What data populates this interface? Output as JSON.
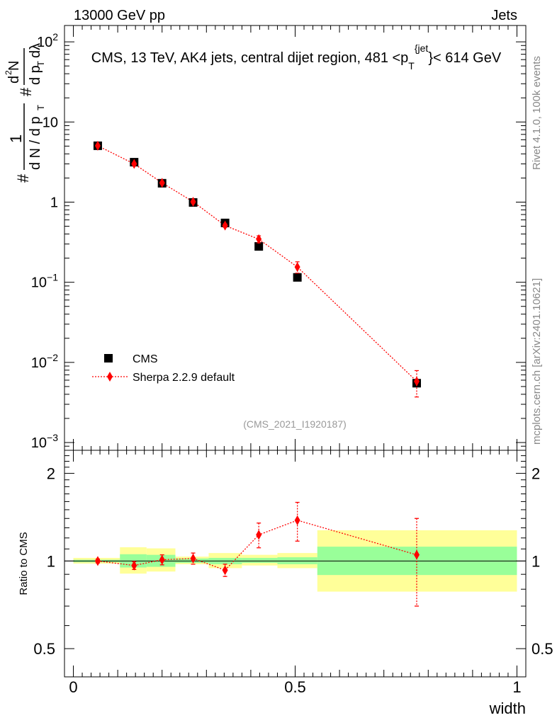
{
  "header": {
    "left": "13000 GeV pp",
    "right": "Jets"
  },
  "side_labels": {
    "rivet": "Rivet 4.1.0,  100k events",
    "mcplots": "mcplots.cern.ch [arXiv:2401.10621]"
  },
  "colors": {
    "data": "#000000",
    "mc": "#ff0000",
    "band_inner": "#99ff99",
    "band_outer": "#ffff99",
    "watermark": "#999999"
  },
  "chart_data": [
    {
      "type": "scatter",
      "panel": "main",
      "title_prefix": "CMS, 13 TeV, AK4 jets, central dijet region, 481 <p",
      "title_sub": "T",
      "title_sup": "{jet",
      "title_suffix": "}< 614 GeV",
      "ylabel": "1 / (dN/dpT) d²N / (dpT dλ)",
      "yscale": "log",
      "ylim": [
        0.0008,
        160
      ],
      "xlim": [
        -0.02,
        1.02
      ],
      "yticks": [
        {
          "v": 100,
          "base": "10",
          "exp": "2"
        },
        {
          "v": 10,
          "base": "10",
          "exp": ""
        },
        {
          "v": 1,
          "base": "1",
          "exp": ""
        },
        {
          "v": 0.1,
          "base": "10",
          "exp": "−1"
        },
        {
          "v": 0.01,
          "base": "10",
          "exp": "−2"
        },
        {
          "v": 0.001,
          "base": "10",
          "exp": "−3"
        }
      ],
      "watermark": "(CMS_2021_I1920187)",
      "legend": [
        {
          "label": "CMS",
          "series": "data"
        },
        {
          "label": "Sherpa 2.2.9 default",
          "series": "mc"
        }
      ],
      "series": [
        {
          "name": "CMS",
          "key": "data",
          "points": [
            {
              "x": 0.055,
              "y": 5.05
            },
            {
              "x": 0.137,
              "y": 3.15
            },
            {
              "x": 0.2,
              "y": 1.72
            },
            {
              "x": 0.27,
              "y": 0.99
            },
            {
              "x": 0.342,
              "y": 0.55
            },
            {
              "x": 0.418,
              "y": 0.28
            },
            {
              "x": 0.505,
              "y": 0.115
            },
            {
              "x": 0.774,
              "y": 0.0055
            }
          ]
        },
        {
          "name": "Sherpa 2.2.9 default",
          "key": "mc",
          "points": [
            {
              "x": 0.055,
              "y": 5.05,
              "err": 0.07
            },
            {
              "x": 0.137,
              "y": 3.0,
              "err": 0.1
            },
            {
              "x": 0.2,
              "y": 1.74,
              "err": 0.06
            },
            {
              "x": 0.27,
              "y": 1.01,
              "err": 0.04
            },
            {
              "x": 0.342,
              "y": 0.51,
              "err": 0.025
            },
            {
              "x": 0.418,
              "y": 0.345,
              "err": 0.035
            },
            {
              "x": 0.505,
              "y": 0.155,
              "err": 0.025
            },
            {
              "x": 0.774,
              "y": 0.0058,
              "err": 0.0021
            }
          ]
        }
      ]
    },
    {
      "type": "scatter",
      "panel": "ratio",
      "ylabel": "Ratio to CMS",
      "xlabel": "width",
      "yscale": "log",
      "ylim": [
        0.4,
        2.4
      ],
      "xlim": [
        -0.02,
        1.02
      ],
      "yticks": [
        {
          "v": 2,
          "label": "2"
        },
        {
          "v": 1,
          "label": "1"
        },
        {
          "v": 0.5,
          "label": "0.5"
        }
      ],
      "xticks": [
        {
          "v": 0,
          "label": "0"
        },
        {
          "v": 0.5,
          "label": "0.5"
        },
        {
          "v": 1,
          "label": "1"
        }
      ],
      "bands": [
        {
          "x0": 0.0,
          "x1": 0.105,
          "inner": [
            0.99,
            1.01
          ],
          "outer": [
            0.98,
            1.025
          ]
        },
        {
          "x0": 0.105,
          "x1": 0.165,
          "inner": [
            0.95,
            1.055
          ],
          "outer": [
            0.905,
            1.115
          ]
        },
        {
          "x0": 0.165,
          "x1": 0.23,
          "inner": [
            0.955,
            1.05
          ],
          "outer": [
            0.92,
            1.105
          ]
        },
        {
          "x0": 0.23,
          "x1": 0.305,
          "inner": [
            0.985,
            1.02
          ],
          "outer": [
            0.975,
            1.035
          ]
        },
        {
          "x0": 0.305,
          "x1": 0.38,
          "inner": [
            0.975,
            1.025
          ],
          "outer": [
            0.945,
            1.065
          ]
        },
        {
          "x0": 0.38,
          "x1": 0.46,
          "inner": [
            0.985,
            1.025
          ],
          "outer": [
            0.965,
            1.05
          ]
        },
        {
          "x0": 0.46,
          "x1": 0.55,
          "inner": [
            0.975,
            1.03
          ],
          "outer": [
            0.945,
            1.065
          ]
        },
        {
          "x0": 0.55,
          "x1": 1.0,
          "inner": [
            0.895,
            1.12
          ],
          "outer": [
            0.785,
            1.275
          ]
        }
      ],
      "series": [
        {
          "name": "Sherpa 2.2.9 default",
          "key": "mc",
          "points": [
            {
              "x": 0.055,
              "y": 1.0,
              "err": 0.015
            },
            {
              "x": 0.137,
              "y": 0.965,
              "err": 0.03
            },
            {
              "x": 0.2,
              "y": 1.01,
              "err": 0.04
            },
            {
              "x": 0.27,
              "y": 1.02,
              "err": 0.045
            },
            {
              "x": 0.342,
              "y": 0.93,
              "err": 0.045
            },
            {
              "x": 0.418,
              "y": 1.23,
              "err": 0.12
            },
            {
              "x": 0.505,
              "y": 1.38,
              "err": 0.21
            },
            {
              "x": 0.774,
              "y": 1.05,
              "err": 0.35
            }
          ]
        }
      ]
    }
  ]
}
